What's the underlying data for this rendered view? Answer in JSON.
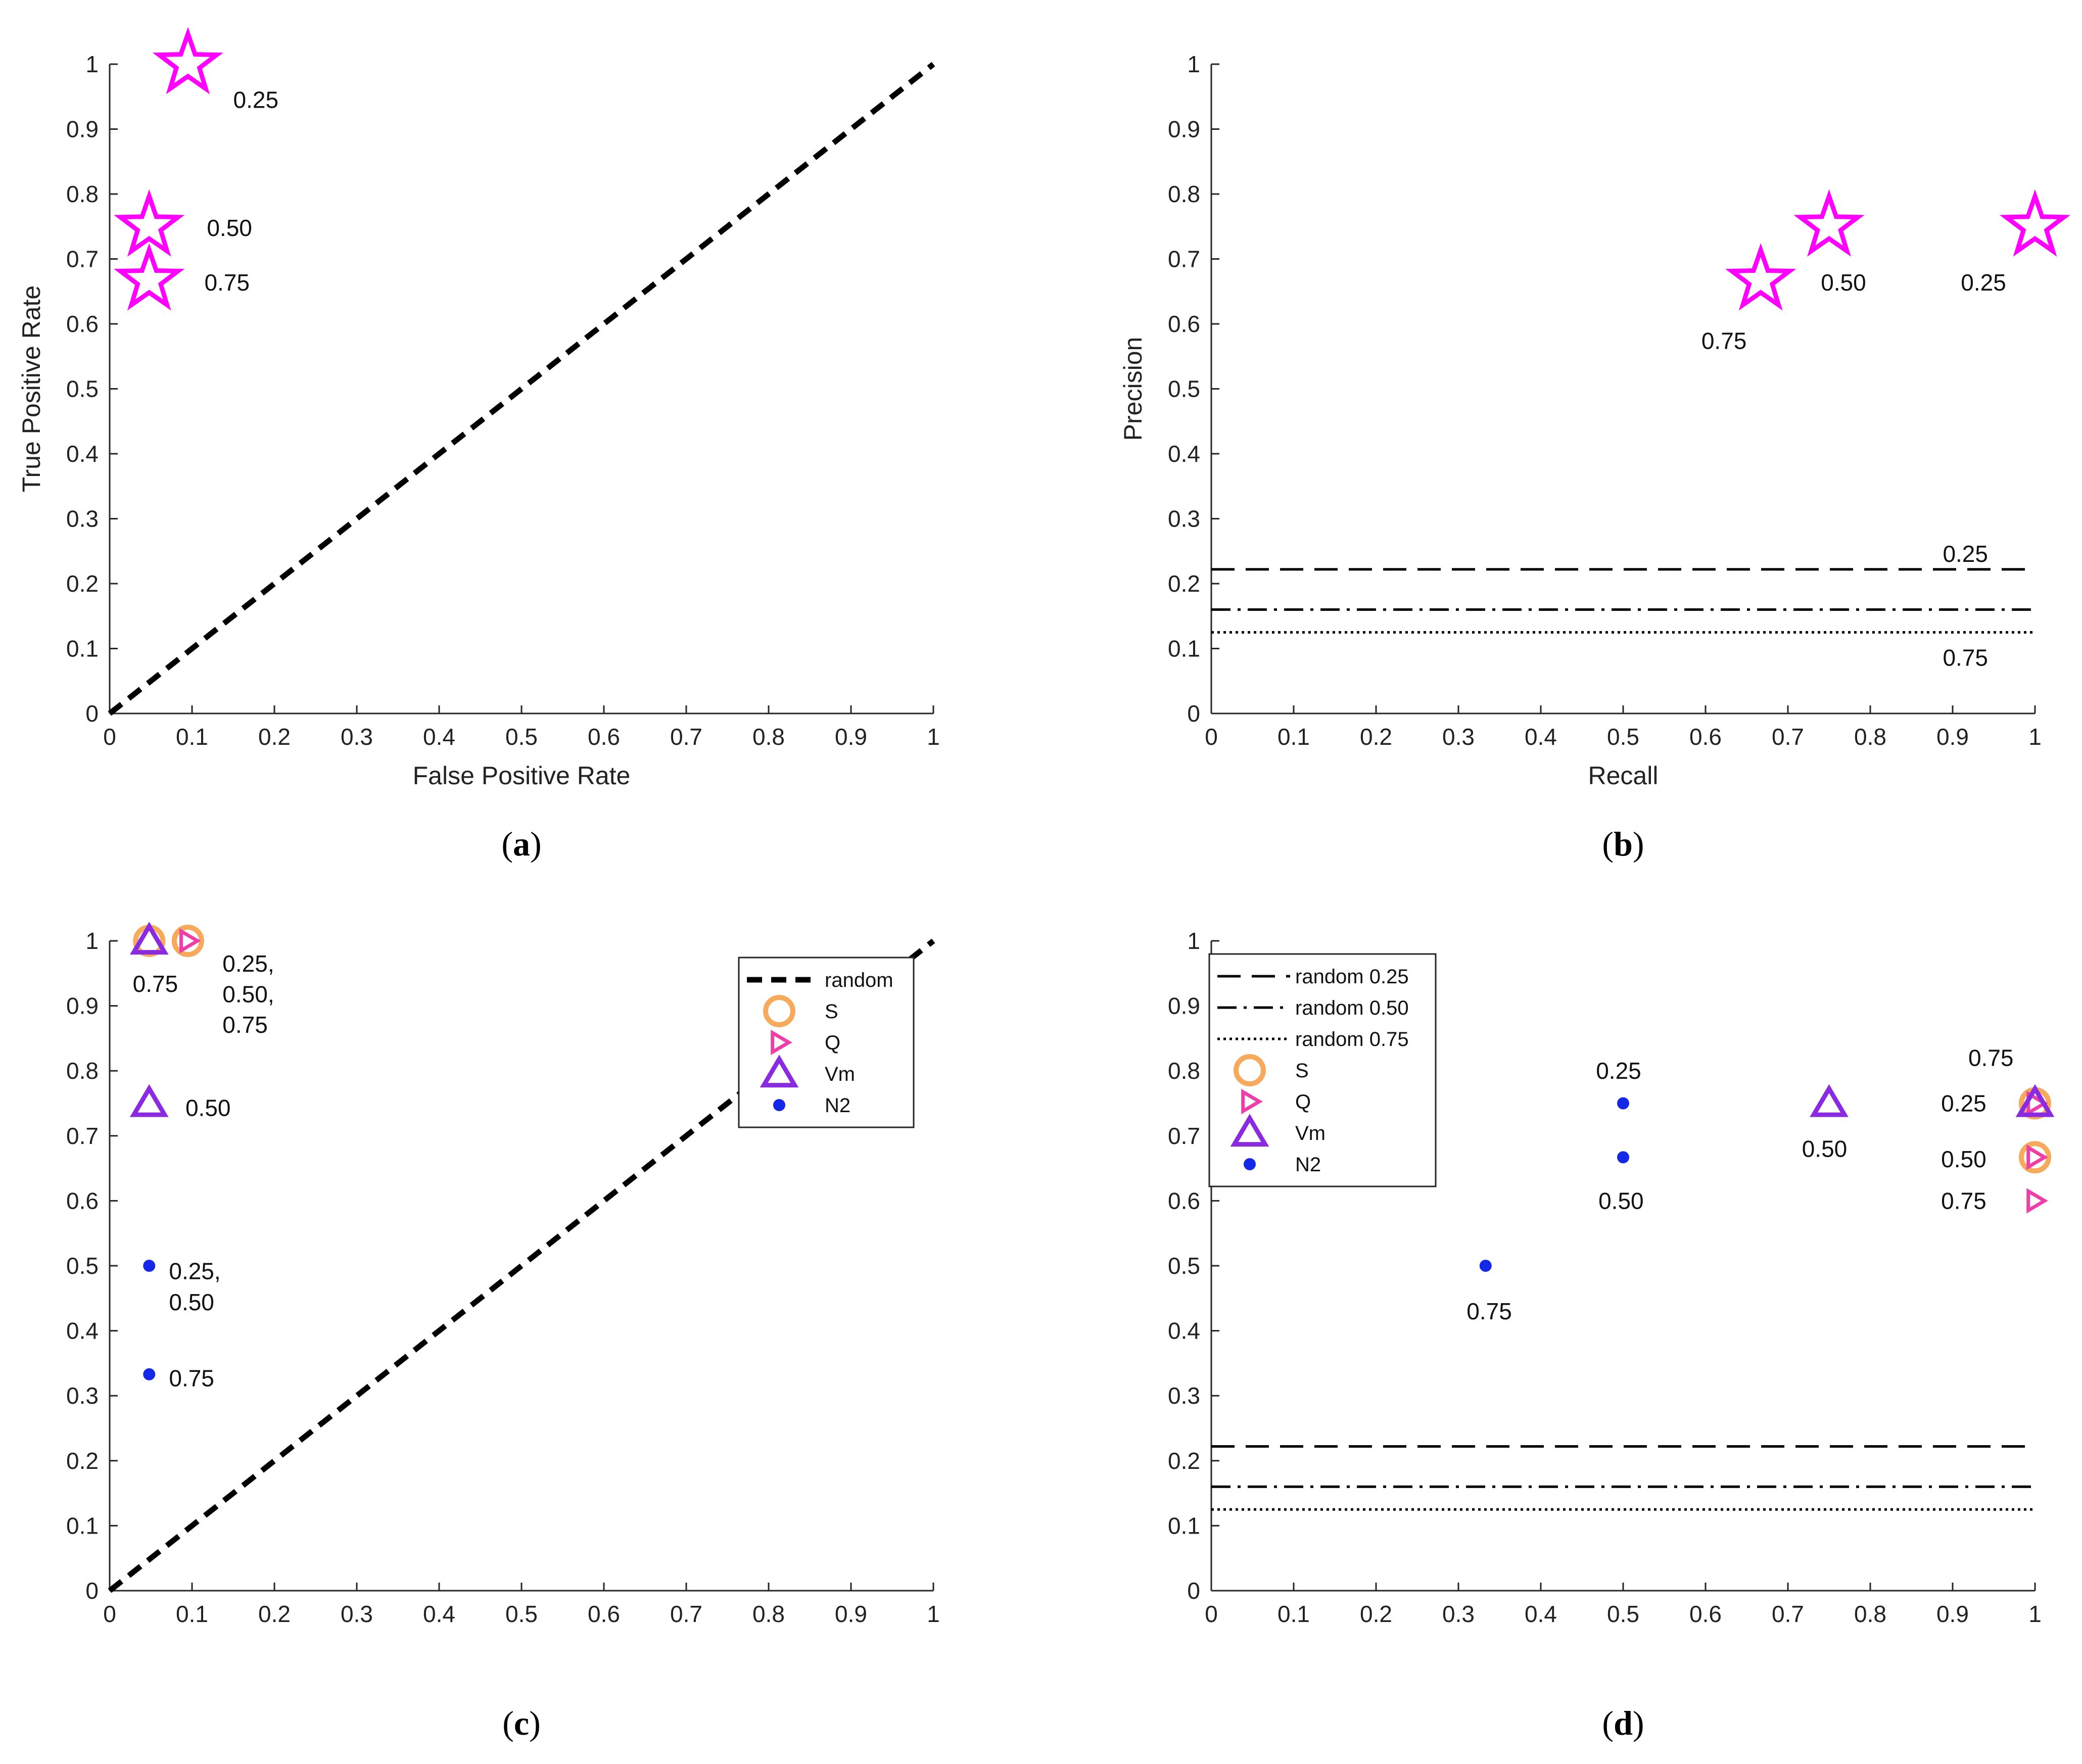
{
  "chart_data": [
    {
      "id": "a",
      "type": "scatter",
      "caption": "a",
      "xlabel": "False Positive Rate",
      "ylabel": "True Positive Rate",
      "xlim": [
        0,
        1
      ],
      "ylim": [
        0,
        1
      ],
      "xticks": [
        "0",
        "0.1",
        "0.2",
        "0.3",
        "0.4",
        "0.5",
        "0.6",
        "0.7",
        "0.8",
        "0.9",
        "1"
      ],
      "yticks": [
        "0",
        "0.1",
        "0.2",
        "0.3",
        "0.4",
        "0.5",
        "0.6",
        "0.7",
        "0.8",
        "0.9",
        "1"
      ],
      "lines": [
        {
          "name": "random",
          "style": "dashed-thick",
          "x": [
            0,
            1
          ],
          "y": [
            0,
            1
          ]
        }
      ],
      "series": [
        {
          "name": "stars",
          "marker": "star",
          "color": "#ff00ff",
          "points": [
            {
              "x": 0.095,
              "y": 1.0,
              "label": "0.25"
            },
            {
              "x": 0.048,
              "y": 0.75,
              "label": "0.50"
            },
            {
              "x": 0.048,
              "y": 0.667,
              "label": "0.75"
            }
          ]
        }
      ],
      "annotations": [
        {
          "text": "0.25",
          "x": 0.15,
          "y": 0.945
        },
        {
          "text": "0.50",
          "x": 0.118,
          "y": 0.748
        },
        {
          "text": "0.75",
          "x": 0.115,
          "y": 0.664
        }
      ]
    },
    {
      "id": "b",
      "type": "scatter",
      "caption": "b",
      "xlabel": "Recall",
      "ylabel": "Precision",
      "xlim": [
        0,
        1
      ],
      "ylim": [
        0,
        1
      ],
      "xticks": [
        "0",
        "0.1",
        "0.2",
        "0.3",
        "0.4",
        "0.5",
        "0.6",
        "0.7",
        "0.8",
        "0.9",
        "1"
      ],
      "yticks": [
        "0",
        "0.1",
        "0.2",
        "0.3",
        "0.4",
        "0.5",
        "0.6",
        "0.7",
        "0.8",
        "0.9",
        "1"
      ],
      "lines": [
        {
          "name": "random 0.25",
          "style": "dashed",
          "x": [
            0,
            1
          ],
          "y": [
            0.222,
            0.222
          ]
        },
        {
          "name": "random 0.50",
          "style": "dashdot",
          "x": [
            0,
            1
          ],
          "y": [
            0.16,
            0.16
          ]
        },
        {
          "name": "random 0.75",
          "style": "dotted",
          "x": [
            0,
            1
          ],
          "y": [
            0.125,
            0.125
          ]
        }
      ],
      "series": [
        {
          "name": "stars",
          "marker": "star",
          "color": "#ff00ff",
          "points": [
            {
              "x": 1.0,
              "y": 0.75,
              "label": "0.25"
            },
            {
              "x": 0.75,
              "y": 0.75,
              "label": "0.50"
            },
            {
              "x": 0.667,
              "y": 0.667,
              "label": "0.75"
            }
          ]
        }
      ],
      "annotations": [
        {
          "text": "0.50",
          "x": 0.74,
          "y": 0.664
        },
        {
          "text": "0.25",
          "x": 0.91,
          "y": 0.664
        },
        {
          "text": "0.75",
          "x": 0.595,
          "y": 0.574
        },
        {
          "text": "0.25",
          "x": 0.888,
          "y": 0.246
        },
        {
          "text": "0.75",
          "x": 0.888,
          "y": 0.086
        }
      ]
    },
    {
      "id": "c",
      "type": "scatter",
      "caption": "c",
      "xlabel": "",
      "ylabel": "",
      "xlim": [
        0,
        1
      ],
      "ylim": [
        0,
        1
      ],
      "xticks": [
        "0",
        "0.1",
        "0.2",
        "0.3",
        "0.4",
        "0.5",
        "0.6",
        "0.7",
        "0.8",
        "0.9",
        "1"
      ],
      "yticks": [
        "0",
        "0.1",
        "0.2",
        "0.3",
        "0.4",
        "0.5",
        "0.6",
        "0.7",
        "0.8",
        "0.9",
        "1"
      ],
      "lines": [
        {
          "name": "random",
          "style": "dashed-thick",
          "x": [
            0,
            1
          ],
          "y": [
            0,
            1
          ]
        }
      ],
      "series": [
        {
          "name": "S",
          "marker": "circle",
          "color": "#f7a95c",
          "points": [
            {
              "x": 0.048,
              "y": 1.0
            },
            {
              "x": 0.095,
              "y": 1.0
            }
          ]
        },
        {
          "name": "Q",
          "marker": "triangle-right",
          "color": "#ee3fa8",
          "points": [
            {
              "x": 0.095,
              "y": 1.0
            }
          ]
        },
        {
          "name": "Vm",
          "marker": "triangle-up",
          "color": "#8a2be2",
          "points": [
            {
              "x": 0.048,
              "y": 1.0
            },
            {
              "x": 0.048,
              "y": 0.75
            }
          ]
        },
        {
          "name": "N2",
          "marker": "dot",
          "color": "#1528e8",
          "points": [
            {
              "x": 0.048,
              "y": 0.5
            },
            {
              "x": 0.048,
              "y": 0.333
            }
          ]
        }
      ],
      "annotations": [
        {
          "text": "0.25,",
          "x": 0.137,
          "y": 0.965
        },
        {
          "text": "0.50,",
          "x": 0.137,
          "y": 0.918
        },
        {
          "text": "0.75",
          "x": 0.137,
          "y": 0.871
        },
        {
          "text": "0.75",
          "x": 0.028,
          "y": 0.934
        },
        {
          "text": "0.50",
          "x": 0.092,
          "y": 0.743
        },
        {
          "text": "0.25,",
          "x": 0.072,
          "y": 0.492
        },
        {
          "text": "0.50",
          "x": 0.072,
          "y": 0.444
        },
        {
          "text": "0.75",
          "x": 0.072,
          "y": 0.327
        }
      ],
      "legend": {
        "position": "top-right",
        "entries": [
          {
            "label": "random",
            "kind": "dashed-thick"
          },
          {
            "label": "S",
            "kind": "circle"
          },
          {
            "label": "Q",
            "kind": "triangle-right"
          },
          {
            "label": "Vm",
            "kind": "triangle-up"
          },
          {
            "label": "N2",
            "kind": "dot"
          }
        ]
      }
    },
    {
      "id": "d",
      "type": "scatter",
      "caption": "d",
      "xlabel": "",
      "ylabel": "",
      "xlim": [
        0,
        1
      ],
      "ylim": [
        0,
        1
      ],
      "xticks": [
        "0",
        "0.1",
        "0.2",
        "0.3",
        "0.4",
        "0.5",
        "0.6",
        "0.7",
        "0.8",
        "0.9",
        "1"
      ],
      "yticks": [
        "0",
        "0.1",
        "0.2",
        "0.3",
        "0.4",
        "0.5",
        "0.6",
        "0.7",
        "0.8",
        "0.9",
        "1"
      ],
      "lines": [
        {
          "name": "random 0.25",
          "style": "dashed",
          "x": [
            0,
            1
          ],
          "y": [
            0.222,
            0.222
          ]
        },
        {
          "name": "random 0.50",
          "style": "dashdot",
          "x": [
            0,
            1
          ],
          "y": [
            0.16,
            0.16
          ]
        },
        {
          "name": "random 0.75",
          "style": "dotted",
          "x": [
            0,
            1
          ],
          "y": [
            0.125,
            0.125
          ]
        }
      ],
      "series": [
        {
          "name": "S",
          "marker": "circle",
          "color": "#f7a95c",
          "points": [
            {
              "x": 1.0,
              "y": 0.75
            },
            {
              "x": 1.0,
              "y": 0.667
            }
          ]
        },
        {
          "name": "Q",
          "marker": "triangle-right",
          "color": "#ee3fa8",
          "points": [
            {
              "x": 1.0,
              "y": 0.75
            },
            {
              "x": 1.0,
              "y": 0.667
            },
            {
              "x": 1.0,
              "y": 0.6
            }
          ]
        },
        {
          "name": "Vm",
          "marker": "triangle-up",
          "color": "#8a2be2",
          "points": [
            {
              "x": 1.0,
              "y": 0.75
            },
            {
              "x": 0.75,
              "y": 0.75
            }
          ]
        },
        {
          "name": "N2",
          "marker": "dot",
          "color": "#1528e8",
          "points": [
            {
              "x": 0.5,
              "y": 0.75
            },
            {
              "x": 0.5,
              "y": 0.667
            },
            {
              "x": 0.333,
              "y": 0.5
            }
          ]
        }
      ],
      "annotations": [
        {
          "text": "0.25",
          "x": 0.467,
          "y": 0.8
        },
        {
          "text": "0.50",
          "x": 0.47,
          "y": 0.6
        },
        {
          "text": "0.75",
          "x": 0.31,
          "y": 0.43
        },
        {
          "text": "0.50",
          "x": 0.717,
          "y": 0.68
        },
        {
          "text": "0.75",
          "x": 0.919,
          "y": 0.82
        },
        {
          "text": "0.25",
          "x": 0.886,
          "y": 0.75
        },
        {
          "text": "0.50",
          "x": 0.886,
          "y": 0.664
        },
        {
          "text": "0.75",
          "x": 0.886,
          "y": 0.6
        }
      ],
      "legend": {
        "position": "top-left",
        "entries": [
          {
            "label": "random 0.25",
            "kind": "dashed"
          },
          {
            "label": "random 0.50",
            "kind": "dashdot"
          },
          {
            "label": "random 0.75",
            "kind": "dotted"
          },
          {
            "label": "S",
            "kind": "circle"
          },
          {
            "label": "Q",
            "kind": "triangle-right"
          },
          {
            "label": "Vm",
            "kind": "triangle-up"
          },
          {
            "label": "N2",
            "kind": "dot"
          }
        ]
      }
    }
  ]
}
